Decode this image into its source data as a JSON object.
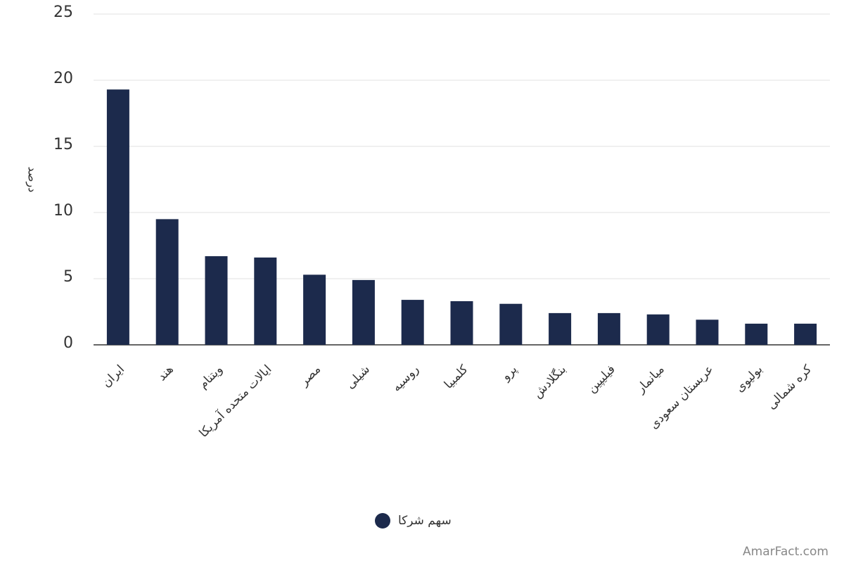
{
  "chart_data": {
    "type": "bar",
    "y_label": "درصد",
    "categories": [
      "ایران",
      "هند",
      "ویتنام",
      "ایالات متحده آمریکا",
      "مصر",
      "شیلی",
      "روسیه",
      "کلمبیا",
      "پرو",
      "بنگلادش",
      "فیلیپین",
      "میانمار",
      "عربستان سعودی",
      "بولیوی",
      "کره شمالی"
    ],
    "series": [
      {
        "name": "سهم شرکا",
        "color": "#1c2a4c",
        "values": [
          19.3,
          9.5,
          6.7,
          6.6,
          5.3,
          4.9,
          3.4,
          3.3,
          3.1,
          2.4,
          2.4,
          2.3,
          1.9,
          1.6,
          1.6
        ]
      }
    ],
    "ylim": [
      0,
      25
    ],
    "yticks": [
      0,
      5,
      10,
      15,
      20,
      25
    ],
    "grid": true,
    "legend": "bottom",
    "watermark": "AmarFact.com"
  }
}
